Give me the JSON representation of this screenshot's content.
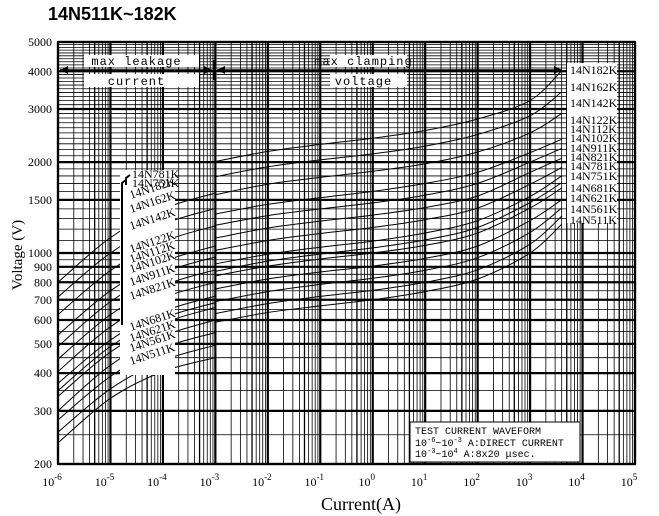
{
  "chart_data": {
    "type": "line",
    "title": "14N511K~182K",
    "xlabel": "Current(A)",
    "ylabel": "Voltage (V)",
    "x_scale": "log",
    "y_scale": "log",
    "xlim": [
      1e-06,
      100000.0
    ],
    "ylim": [
      200,
      5000
    ],
    "grid": true,
    "x_ticks": [
      {
        "b": "10",
        "e": "-6"
      },
      {
        "b": "10",
        "e": "-5"
      },
      {
        "b": "10",
        "e": "-4"
      },
      {
        "b": "10",
        "e": "-3"
      },
      {
        "b": "10",
        "e": "-2"
      },
      {
        "b": "10",
        "e": "-1"
      },
      {
        "b": "10",
        "e": "0"
      },
      {
        "b": "10",
        "e": "1"
      },
      {
        "b": "10",
        "e": "2"
      },
      {
        "b": "10",
        "e": "3"
      },
      {
        "b": "10",
        "e": "4"
      },
      {
        "b": "10",
        "e": "5"
      }
    ],
    "y_ticks": [
      "200",
      "300",
      "400",
      "500",
      "600",
      "700",
      "800",
      "900",
      "1000",
      "1500",
      "2000",
      "3000",
      "4000",
      "5000"
    ],
    "regions": [
      {
        "label": [
          "max leakage",
          "current"
        ]
      },
      {
        "label": [
          "max clamping",
          "voltage"
        ]
      }
    ],
    "note": {
      "l1": "TEST CURRENT WAVEFORM",
      "l2a": "10",
      "l2b": "-6",
      "l2c": "~",
      "l2d": "10",
      "l2e": "-3",
      "l2f": " A:DIRECT CURRENT",
      "l3a": "10",
      "l3b": "-3",
      "l3c": "~",
      "l3d": "10",
      "l3e": "4",
      "l3f": "  A:8x20  μsec."
    },
    "series": [
      {
        "name": "14N511K",
        "leak": [
          [
            1e-06,
            235
          ],
          [
            1e-05,
            330
          ],
          [
            0.0001,
            405
          ],
          [
            0.001,
            450
          ]
        ],
        "clamp": [
          [
            0.001,
            590
          ],
          [
            0.01,
            635
          ],
          [
            0.1,
            668
          ],
          [
            1,
            700
          ],
          [
            10,
            745
          ],
          [
            100,
            820
          ],
          [
            1000,
            1000
          ],
          [
            4000,
            1245
          ]
        ]
      },
      {
        "name": "14N561K",
        "leak": [
          [
            1e-06,
            255
          ],
          [
            1e-05,
            355
          ],
          [
            0.0001,
            440
          ],
          [
            0.001,
            495
          ]
        ],
        "clamp": [
          [
            0.001,
            630
          ],
          [
            0.01,
            680
          ],
          [
            0.1,
            718
          ],
          [
            1,
            752
          ],
          [
            10,
            800
          ],
          [
            100,
            880
          ],
          [
            1000,
            1070
          ],
          [
            4000,
            1325
          ]
        ]
      },
      {
        "name": "14N621K",
        "leak": [
          [
            1e-06,
            280
          ],
          [
            1e-05,
            390
          ],
          [
            0.0001,
            485
          ],
          [
            0.001,
            545
          ]
        ],
        "clamp": [
          [
            0.001,
            690
          ],
          [
            0.01,
            745
          ],
          [
            0.1,
            787
          ],
          [
            1,
            825
          ],
          [
            10,
            877
          ],
          [
            100,
            965
          ],
          [
            1000,
            1170
          ],
          [
            4000,
            1410
          ]
        ]
      },
      {
        "name": "14N681K",
        "leak": [
          [
            1e-06,
            300
          ],
          [
            1e-05,
            425
          ],
          [
            0.0001,
            530
          ],
          [
            0.001,
            600
          ]
        ],
        "clamp": [
          [
            0.001,
            760
          ],
          [
            0.01,
            820
          ],
          [
            0.1,
            865
          ],
          [
            1,
            905
          ],
          [
            10,
            960
          ],
          [
            100,
            1055
          ],
          [
            1000,
            1280
          ],
          [
            4000,
            1500
          ]
        ]
      },
      {
        "name": "14N751K",
        "leak": [
          [
            1e-06,
            335
          ],
          [
            1e-05,
            470
          ],
          [
            0.0001,
            585
          ],
          [
            0.001,
            660
          ]
        ],
        "clamp": [
          [
            0.001,
            840
          ],
          [
            0.01,
            905
          ],
          [
            0.1,
            955
          ],
          [
            1,
            1000
          ],
          [
            10,
            1060
          ],
          [
            100,
            1165
          ],
          [
            1000,
            1410
          ],
          [
            4000,
            1640
          ]
        ]
      },
      {
        "name": "14N781K",
        "leak": [
          [
            1e-06,
            350
          ],
          [
            1e-05,
            490
          ],
          [
            0.0001,
            608
          ],
          [
            0.001,
            685
          ]
        ],
        "clamp": [
          [
            0.001,
            870
          ],
          [
            0.01,
            940
          ],
          [
            0.1,
            992
          ],
          [
            1,
            1040
          ],
          [
            10,
            1105
          ],
          [
            100,
            1215
          ],
          [
            1000,
            1470
          ],
          [
            4000,
            1710
          ]
        ]
      },
      {
        "name": "14N821K",
        "leak": [
          [
            1e-06,
            370
          ],
          [
            1e-05,
            515
          ],
          [
            0.0001,
            640
          ],
          [
            0.001,
            720
          ]
        ],
        "clamp": [
          [
            0.001,
            920
          ],
          [
            0.01,
            990
          ],
          [
            0.1,
            1045
          ],
          [
            1,
            1095
          ],
          [
            10,
            1165
          ],
          [
            100,
            1280
          ],
          [
            1000,
            1540
          ],
          [
            4000,
            1800
          ]
        ]
      },
      {
        "name": "14N911K",
        "leak": [
          [
            1e-06,
            405
          ],
          [
            1e-05,
            570
          ],
          [
            0.0001,
            710
          ],
          [
            0.001,
            800
          ]
        ],
        "clamp": [
          [
            0.001,
            1020
          ],
          [
            0.01,
            1100
          ],
          [
            0.1,
            1160
          ],
          [
            1,
            1215
          ],
          [
            10,
            1290
          ],
          [
            100,
            1410
          ],
          [
            1000,
            1690
          ],
          [
            4000,
            1920
          ]
        ]
      },
      {
        "name": "14N102K",
        "leak": [
          [
            1e-06,
            445
          ],
          [
            1e-05,
            625
          ],
          [
            0.0001,
            780
          ],
          [
            0.001,
            880
          ]
        ],
        "clamp": [
          [
            0.001,
            1120
          ],
          [
            0.01,
            1210
          ],
          [
            0.1,
            1275
          ],
          [
            1,
            1335
          ],
          [
            10,
            1415
          ],
          [
            100,
            1545
          ],
          [
            1000,
            1850
          ],
          [
            4000,
            2060
          ]
        ]
      },
      {
        "name": "14N112K",
        "leak": [
          [
            1e-06,
            490
          ],
          [
            1e-05,
            690
          ],
          [
            0.0001,
            860
          ],
          [
            0.001,
            970
          ]
        ],
        "clamp": [
          [
            0.001,
            1235
          ],
          [
            0.01,
            1330
          ],
          [
            0.1,
            1400
          ],
          [
            1,
            1465
          ],
          [
            10,
            1555
          ],
          [
            100,
            1700
          ],
          [
            1000,
            2000
          ],
          [
            4000,
            2220
          ]
        ]
      },
      {
        "name": "14N122K",
        "leak": [
          [
            1e-06,
            535
          ],
          [
            1e-05,
            750
          ],
          [
            0.0001,
            935
          ],
          [
            0.001,
            1055
          ]
        ],
        "clamp": [
          [
            0.001,
            1345
          ],
          [
            0.01,
            1450
          ],
          [
            0.1,
            1525
          ],
          [
            1,
            1600
          ],
          [
            10,
            1700
          ],
          [
            100,
            1850
          ],
          [
            1000,
            2150
          ],
          [
            4000,
            2380
          ]
        ]
      },
      {
        "name": "14N142K",
        "leak": [
          [
            1e-06,
            625
          ],
          [
            1e-05,
            875
          ],
          [
            0.0001,
            1090
          ],
          [
            0.001,
            1230
          ]
        ],
        "clamp": [
          [
            0.001,
            1560
          ],
          [
            0.01,
            1690
          ],
          [
            0.1,
            1780
          ],
          [
            1,
            1865
          ],
          [
            10,
            1975
          ],
          [
            100,
            2160
          ],
          [
            1000,
            2500
          ],
          [
            4000,
            2900
          ]
        ]
      },
      {
        "name": "14N162K",
        "leak": [
          [
            1e-06,
            715
          ],
          [
            1e-05,
            1000
          ],
          [
            0.0001,
            1245
          ],
          [
            0.001,
            1405
          ]
        ],
        "clamp": [
          [
            0.001,
            1790
          ],
          [
            0.01,
            1930
          ],
          [
            0.1,
            2035
          ],
          [
            1,
            2130
          ],
          [
            10,
            2260
          ],
          [
            100,
            2470
          ],
          [
            1000,
            2850
          ],
          [
            4000,
            3420
          ]
        ]
      },
      {
        "name": "14N182K",
        "leak": [
          [
            1e-06,
            800
          ],
          [
            1e-05,
            1125
          ],
          [
            0.0001,
            1400
          ],
          [
            0.001,
            1580
          ]
        ],
        "clamp": [
          [
            0.001,
            2010
          ],
          [
            0.01,
            2170
          ],
          [
            0.1,
            2290
          ],
          [
            1,
            2400
          ],
          [
            10,
            2545
          ],
          [
            100,
            2780
          ],
          [
            1000,
            3200
          ],
          [
            4000,
            4020
          ]
        ]
      }
    ],
    "leak_labels": [
      "14N781K",
      "14N751K",
      "14N182K",
      "14N162K",
      "14N142K",
      "14N122K",
      "14N112K",
      "14N102K",
      "14N911K",
      "14N821K",
      "14N681K",
      "14N621K",
      "14N561K",
      "14N511K"
    ],
    "clamp_labels": [
      "14N182K",
      "14N162K",
      "14N142K",
      "14N122K",
      "14N112K",
      "14N102K",
      "14N911K",
      "14N821K",
      "14N781K",
      "14N751K",
      "14N681K",
      "14N621K",
      "14N561K",
      "14N511K"
    ]
  }
}
